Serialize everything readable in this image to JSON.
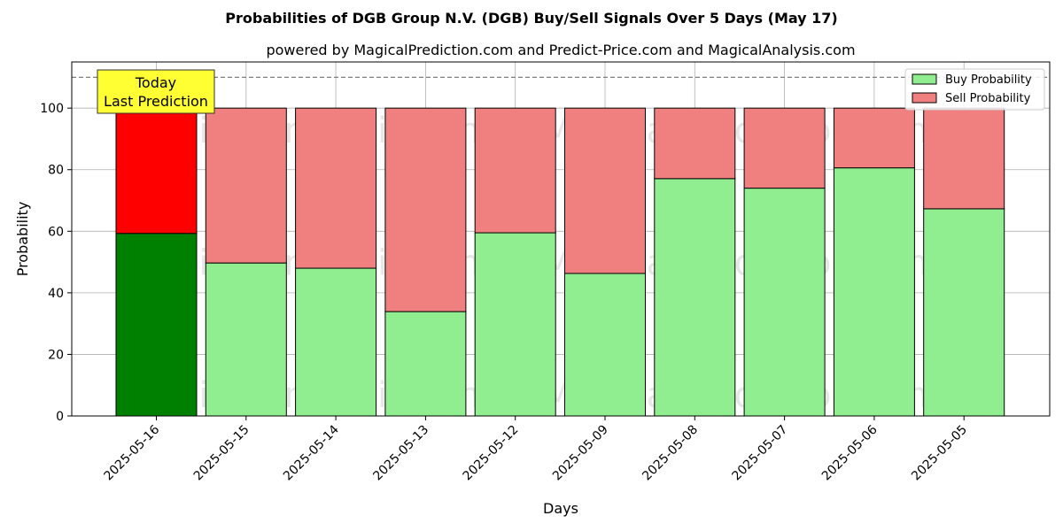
{
  "chart_data": {
    "type": "bar",
    "stacked": true,
    "title": "Probabilities of DGB Group N.V. (DGB) Buy/Sell Signals Over 5 Days (May 17)",
    "subtitle": "powered by MagicalPrediction.com and Predict-Price.com and MagicalAnalysis.com",
    "xlabel": "Days",
    "ylabel": "Probability",
    "ylim": [
      0,
      115
    ],
    "yticks": [
      0,
      20,
      40,
      60,
      80,
      100
    ],
    "grid": true,
    "legend_position": "top-right",
    "reference_line": 110,
    "categories": [
      "2025-05-16",
      "2025-05-15",
      "2025-05-14",
      "2025-05-13",
      "2025-05-12",
      "2025-05-09",
      "2025-05-08",
      "2025-05-07",
      "2025-05-06",
      "2025-05-05"
    ],
    "series": [
      {
        "name": "Buy Probability",
        "values": [
          59.3,
          49.7,
          48.0,
          33.9,
          59.5,
          46.3,
          77.1,
          74.0,
          80.6,
          67.3
        ],
        "color": "#90ee90",
        "highlight_color": "#008000"
      },
      {
        "name": "Sell Probability",
        "values": [
          40.7,
          50.3,
          52.0,
          66.1,
          40.5,
          53.7,
          22.9,
          26.0,
          19.4,
          32.7
        ],
        "color": "#f08080",
        "highlight_color": "#ff0000"
      }
    ],
    "annotation": {
      "lines": [
        "Today",
        "Last Prediction"
      ],
      "background": "#ffff33"
    },
    "watermarks": [
      "MagicalAnalysis.com",
      "MagicalPrediction.com"
    ]
  }
}
